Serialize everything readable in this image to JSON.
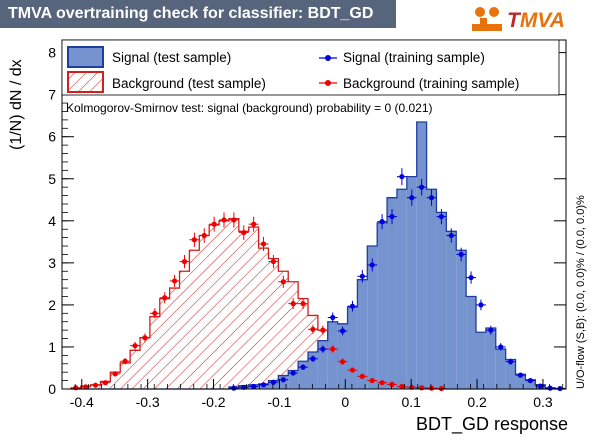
{
  "header": {
    "title": "TMVA overtraining check for classifier: BDT_GD"
  },
  "logo": {
    "text_prefix": "T",
    "text_rest": "MVA"
  },
  "colors": {
    "signal_fill": "#7593cf",
    "signal_line": "#1f3e9e",
    "signal_points": "#0000dd",
    "background_line": "#d21e1e",
    "background_points": "#ee0000",
    "title_bg": "#56657c",
    "logo_orange": "#e8730c"
  },
  "side_label": "U/O-flow (S,B): (0.0, 0.0)% / (0.0, 0.0)%",
  "chart_data": {
    "type": "histogram",
    "title": "TMVA overtraining check for classifier: BDT_GD",
    "xlabel": "BDT_GD response",
    "ylabel": "(1/N) dN / dx",
    "xlim": [
      -0.43,
      0.335
    ],
    "ylim": [
      0,
      8.3
    ],
    "bin_edges_start": -0.4166,
    "bin_width": 0.015,
    "n_bins": 50,
    "x_ticks": [
      -0.4,
      -0.3,
      -0.2,
      -0.1,
      0,
      0.1,
      0.2,
      0.3
    ],
    "x_tick_labels": [
      "-0.4",
      "-0.3",
      "-0.2",
      "-0.1",
      "0",
      "0.1",
      "0.2",
      "0.3"
    ],
    "y_ticks": [
      0,
      1,
      2,
      3,
      4,
      5,
      6,
      7,
      8
    ],
    "y_tick_labels": [
      "0",
      "1",
      "2",
      "3",
      "4",
      "5",
      "6",
      "7",
      "8"
    ],
    "legend": [
      {
        "label": "Signal (test sample)",
        "style": "filled-box"
      },
      {
        "label": "Signal (training sample)",
        "style": "marker"
      },
      {
        "label": "Background (test sample)",
        "style": "hatched-box"
      },
      {
        "label": "Background (training sample)",
        "style": "marker"
      }
    ],
    "annotation": "Kolmogorov-Smirnov test: signal (background) probability =     0 (0.021)",
    "series": [
      {
        "name": "Signal (test sample)",
        "kind": "hist-filled",
        "values": [
          0,
          0,
          0,
          0,
          0,
          0,
          0,
          0,
          0,
          0,
          0,
          0,
          0,
          0,
          0,
          0,
          0.05,
          0.08,
          0.1,
          0.12,
          0.2,
          0.32,
          0.44,
          0.66,
          0.88,
          1.15,
          1.6,
          1.55,
          1.95,
          2.6,
          3.4,
          3.95,
          4.55,
          4.75,
          5.05,
          6.35,
          4.75,
          4.2,
          3.75,
          3.3,
          2.2,
          1.35,
          1.45,
          0.95,
          0.7,
          0.35,
          0.22,
          0.1,
          0.03,
          0.01
        ]
      },
      {
        "name": "Signal (training sample)",
        "kind": "points",
        "values": [
          0,
          0,
          0,
          0,
          0,
          0,
          0,
          0,
          0,
          0,
          0,
          0,
          0,
          0,
          0,
          0,
          0.02,
          0.04,
          0.06,
          0.1,
          0.16,
          0.22,
          0.38,
          0.52,
          0.72,
          0.95,
          1.7,
          1.38,
          1.97,
          2.68,
          2.95,
          3.98,
          4.1,
          5.05,
          4.55,
          4.8,
          4.55,
          4.1,
          3.65,
          3.2,
          2.65,
          2.0,
          1.4,
          1.0,
          0.65,
          0.33,
          0.2,
          0.07,
          0.02,
          0.01
        ]
      },
      {
        "name": "Background (test sample)",
        "kind": "hist-hatched",
        "values": [
          0.02,
          0.07,
          0.1,
          0.18,
          0.4,
          0.62,
          0.92,
          1.22,
          1.72,
          2.15,
          2.4,
          2.8,
          3.3,
          3.65,
          3.9,
          4.0,
          4.05,
          3.75,
          3.85,
          3.35,
          3.1,
          2.8,
          2.55,
          2.15,
          1.75,
          1.4,
          1.0,
          0.68,
          0.42,
          0.3,
          0.2,
          0.15,
          0.1,
          0.06,
          0.04,
          0.03,
          0.02,
          0.01,
          0,
          0,
          0,
          0,
          0,
          0,
          0,
          0,
          0,
          0,
          0,
          0
        ]
      },
      {
        "name": "Background (training sample)",
        "kind": "points",
        "values": [
          0.03,
          0.05,
          0.09,
          0.15,
          0.36,
          0.66,
          1.03,
          1.22,
          1.8,
          2.17,
          2.57,
          3.03,
          3.55,
          3.65,
          3.92,
          4.02,
          4.02,
          3.72,
          3.92,
          3.45,
          3.03,
          2.55,
          2.03,
          2.03,
          1.42,
          1.4,
          0.95,
          0.65,
          0.45,
          0.3,
          0.2,
          0.15,
          0.11,
          0.06,
          0.04,
          0.03,
          0.02,
          0.01,
          0,
          0,
          0,
          0,
          0,
          0,
          0,
          0,
          0,
          0,
          0,
          0
        ]
      }
    ]
  }
}
